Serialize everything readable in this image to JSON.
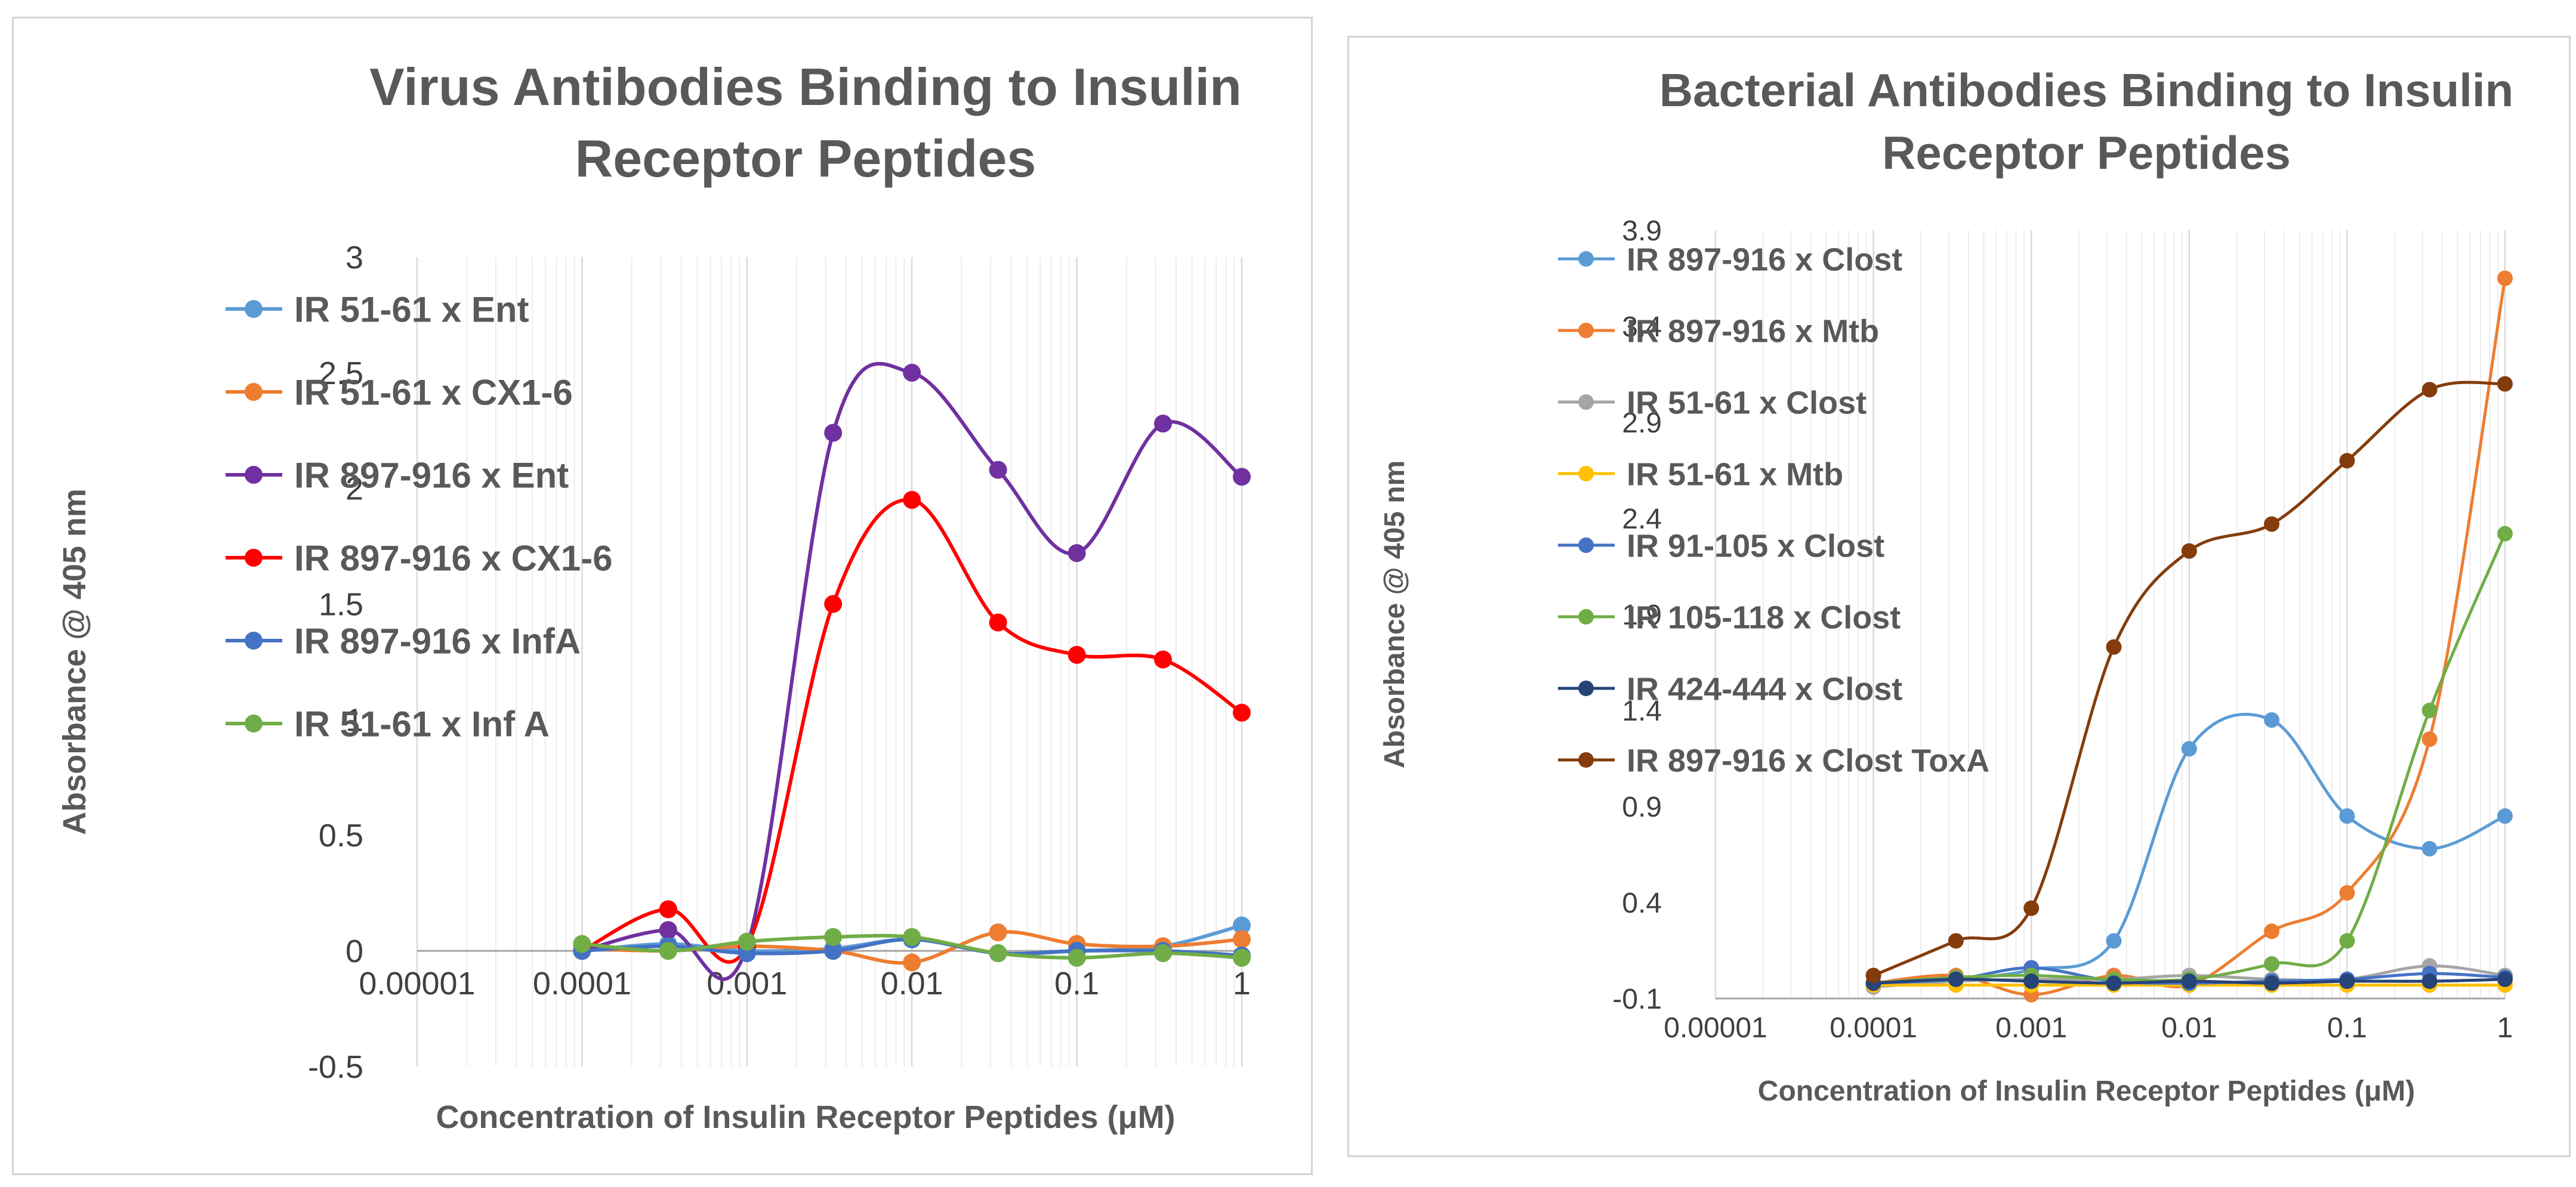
{
  "chart_data": [
    {
      "type": "line",
      "title_lines": [
        "Virus Antibodies Binding to Insulin",
        "Receptor Peptides"
      ],
      "xlabel": "Concentration of Insulin Receptor Peptides (μM)",
      "ylabel": "Absorbance @ 405 nm",
      "xscale": "log",
      "xlim": [
        1e-05,
        1
      ],
      "ylim": [
        -0.5,
        3
      ],
      "xticks": [
        1e-05,
        0.0001,
        0.001,
        0.01,
        0.1,
        1
      ],
      "xtick_labels": [
        "0.00001",
        "0.0001",
        "0.001",
        "0.01",
        "0.1",
        "1"
      ],
      "yticks": [
        -0.5,
        0,
        0.5,
        1,
        1.5,
        2,
        2.5,
        3
      ],
      "ytick_labels": [
        "-0.5",
        "0",
        "0.5",
        "1",
        "1.5",
        "2",
        "2.5",
        "3"
      ],
      "legend_position": "top-left",
      "x": [
        0.0001,
        0.000333,
        0.001,
        0.00333,
        0.01,
        0.0333,
        0.1,
        0.333,
        1
      ],
      "series": [
        {
          "name": "IR 51-61 x Ent",
          "color": "#5b9bd5",
          "values": [
            0.0,
            0.03,
            0.0,
            0.01,
            0.05,
            -0.01,
            0.0,
            0.02,
            0.11
          ]
        },
        {
          "name": "IR 51-61 x CX1-6",
          "color": "#ed7d31",
          "values": [
            0.01,
            0.0,
            0.02,
            0.0,
            -0.05,
            0.08,
            0.03,
            0.02,
            0.05
          ]
        },
        {
          "name": "IR 897-916 x Ent",
          "color": "#7030a0",
          "values": [
            0.0,
            0.09,
            0.02,
            2.24,
            2.5,
            2.08,
            1.72,
            2.28,
            2.05
          ]
        },
        {
          "name": "IR 897-916 x CX1-6",
          "color": "#ff0000",
          "values": [
            0.0,
            0.18,
            0.02,
            1.5,
            1.95,
            1.42,
            1.28,
            1.26,
            1.03
          ]
        },
        {
          "name": "IR 897-916 x InfA",
          "color": "#4472c4",
          "values": [
            0.0,
            0.02,
            -0.01,
            0.0,
            0.05,
            -0.01,
            0.0,
            0.0,
            -0.02
          ]
        },
        {
          "name": "IR 51-61 x Inf A",
          "color": "#70ad47",
          "values": [
            0.03,
            0.0,
            0.04,
            0.06,
            0.06,
            -0.01,
            -0.03,
            -0.01,
            -0.03
          ]
        }
      ]
    },
    {
      "type": "line",
      "title_lines": [
        "Bacterial Antibodies Binding to Insulin",
        "Receptor Peptides"
      ],
      "xlabel": "Concentration of Insulin Receptor Peptides (μM)",
      "ylabel": "Absorbance @ 405 nm",
      "xscale": "log",
      "xlim": [
        1e-05,
        1
      ],
      "ylim": [
        -0.1,
        3.9
      ],
      "xticks": [
        1e-05,
        0.0001,
        0.001,
        0.01,
        0.1,
        1
      ],
      "xtick_labels": [
        "0.00001",
        "0.0001",
        "0.001",
        "0.01",
        "0.1",
        "1"
      ],
      "yticks": [
        -0.1,
        0.4,
        0.9,
        1.4,
        1.9,
        2.4,
        2.9,
        3.4,
        3.9
      ],
      "ytick_labels": [
        "-0.1",
        "0.4",
        "0.9",
        "1.4",
        "1.9",
        "2.4",
        "2.9",
        "3.4",
        "3.9"
      ],
      "legend_position": "top-left",
      "x": [
        0.0001,
        0.000333,
        0.001,
        0.00333,
        0.01,
        0.0333,
        0.1,
        0.333,
        1
      ],
      "series": [
        {
          "name": "IR 897-916 x Clost",
          "color": "#5b9bd5",
          "values": [
            -0.03,
            0.0,
            0.05,
            0.2,
            1.2,
            1.35,
            0.85,
            0.68,
            0.85
          ]
        },
        {
          "name": "IR 897-916 x Mtb",
          "color": "#ed7d31",
          "values": [
            -0.02,
            0.02,
            -0.08,
            0.02,
            -0.03,
            0.25,
            0.45,
            1.25,
            3.65
          ]
        },
        {
          "name": "IR 51-61 x Clost",
          "color": "#a5a5a5",
          "values": [
            -0.04,
            -0.01,
            0.0,
            0.0,
            0.02,
            0.0,
            0.0,
            0.07,
            0.02
          ]
        },
        {
          "name": "IR 51-61 x Mtb",
          "color": "#ffc000",
          "values": [
            -0.03,
            -0.03,
            -0.03,
            -0.03,
            -0.03,
            -0.03,
            -0.03,
            -0.03,
            -0.03
          ]
        },
        {
          "name": "IR 91-105 x Clost",
          "color": "#4472c4",
          "values": [
            -0.02,
            0.0,
            0.06,
            -0.01,
            -0.02,
            -0.01,
            0.0,
            0.03,
            0.01
          ]
        },
        {
          "name": "IR 105-118 x Clost",
          "color": "#70ad47",
          "values": [
            -0.02,
            0.01,
            0.02,
            0.0,
            0.0,
            0.08,
            0.2,
            1.4,
            2.32
          ]
        },
        {
          "name": "IR 424-444 x Clost",
          "color": "#264478",
          "values": [
            -0.02,
            0.0,
            -0.01,
            -0.02,
            -0.01,
            -0.02,
            -0.01,
            -0.01,
            0.0
          ]
        },
        {
          "name": "IR 897-916 x Clost ToxA",
          "color": "#843c0c",
          "values": [
            0.02,
            0.2,
            0.37,
            1.73,
            2.23,
            2.37,
            2.7,
            3.07,
            3.1
          ]
        }
      ]
    }
  ]
}
